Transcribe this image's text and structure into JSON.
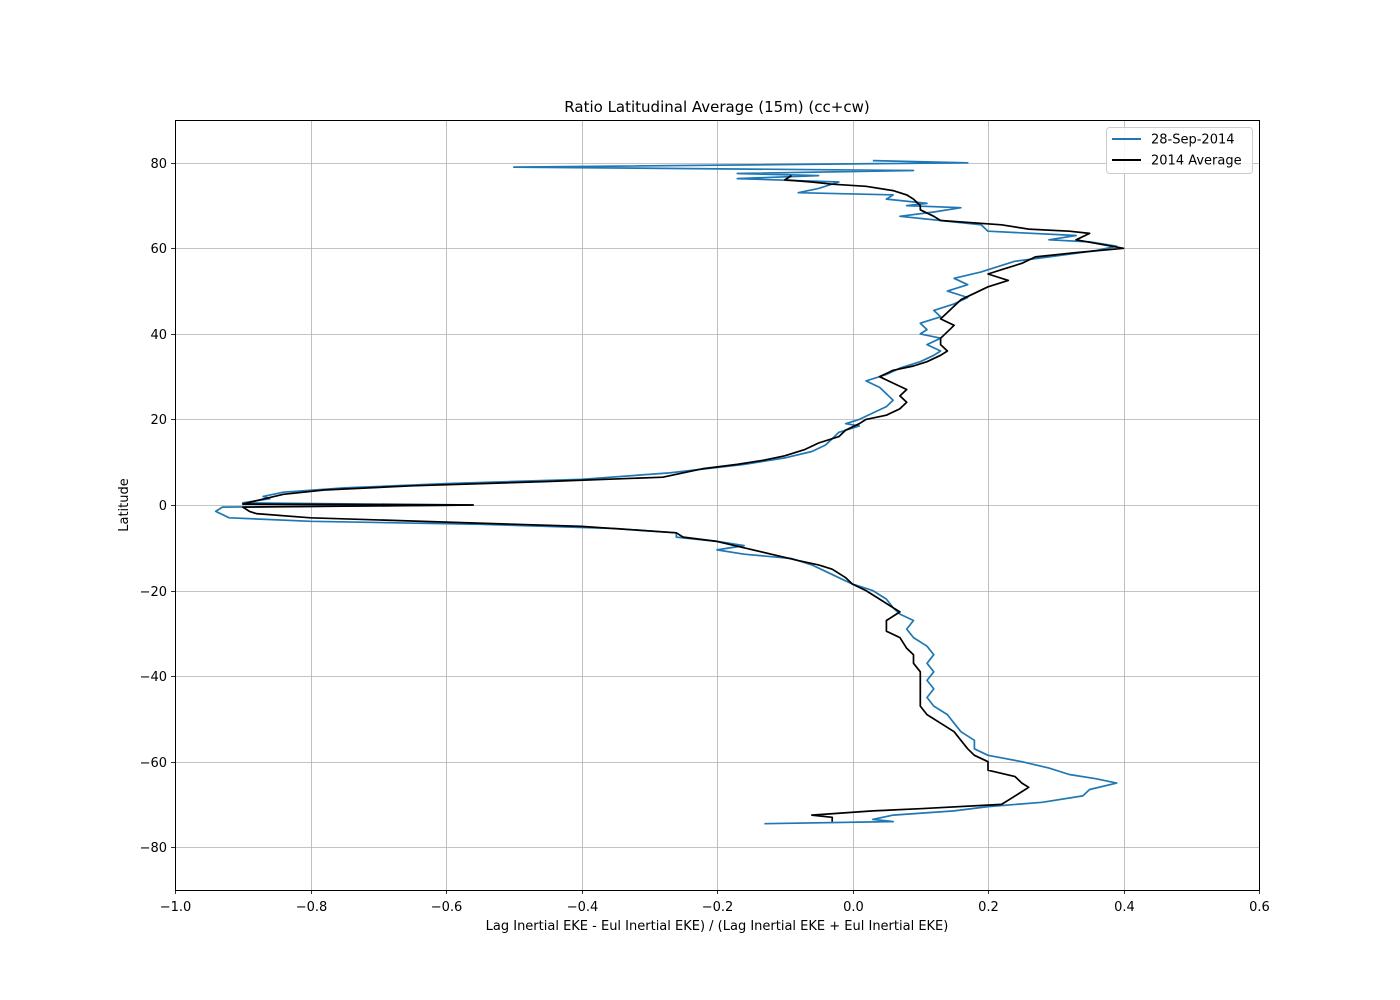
{
  "chart_data": {
    "type": "line",
    "title": "Ratio Latitudinal Average (15m) (cc+cw)",
    "xlabel": "Lag Inertial EKE - Eul Inertial EKE) / (Lag Inertial EKE + Eul Inertial EKE)",
    "ylabel": "Latitude",
    "xlim": [
      -1.0,
      0.6
    ],
    "ylim": [
      -90,
      90
    ],
    "x_ticks": [
      -1.0,
      -0.8,
      -0.6,
      -0.4,
      -0.2,
      0.0,
      0.2,
      0.4,
      0.6
    ],
    "x_tick_labels": [
      "−1.0",
      "−0.8",
      "−0.6",
      "−0.4",
      "−0.2",
      "0.0",
      "0.2",
      "0.4",
      "0.6"
    ],
    "y_ticks": [
      -80,
      -60,
      -40,
      -20,
      0,
      20,
      40,
      60,
      80
    ],
    "y_tick_labels": [
      "−80",
      "−60",
      "−40",
      "−20",
      "0",
      "20",
      "40",
      "60",
      "80"
    ],
    "grid": true,
    "legend_position": "top-right",
    "series": [
      {
        "name": "28-Sep-2014",
        "color": "#1f77b4",
        "points": [
          [
            0.03,
            80.5
          ],
          [
            0.17,
            80.0
          ],
          [
            -0.5,
            79.0
          ],
          [
            0.09,
            78.2
          ],
          [
            -0.17,
            77.5
          ],
          [
            -0.05,
            77.0
          ],
          [
            -0.17,
            76.3
          ],
          [
            -0.02,
            75.5
          ],
          [
            -0.05,
            74.0
          ],
          [
            -0.08,
            73.0
          ],
          [
            0.06,
            72.5
          ],
          [
            0.05,
            71.5
          ],
          [
            0.11,
            70.5
          ],
          [
            0.08,
            70.0
          ],
          [
            0.16,
            69.5
          ],
          [
            0.12,
            68.5
          ],
          [
            0.07,
            67.5
          ],
          [
            0.13,
            66.5
          ],
          [
            0.19,
            65.5
          ],
          [
            0.2,
            64.0
          ],
          [
            0.33,
            63.0
          ],
          [
            0.29,
            62.0
          ],
          [
            0.35,
            61.5
          ],
          [
            0.39,
            60.5
          ],
          [
            0.36,
            59.5
          ],
          [
            0.29,
            58.0
          ],
          [
            0.24,
            57.0
          ],
          [
            0.21,
            55.5
          ],
          [
            0.19,
            54.5
          ],
          [
            0.15,
            53.0
          ],
          [
            0.17,
            51.5
          ],
          [
            0.14,
            50.0
          ],
          [
            0.17,
            48.5
          ],
          [
            0.15,
            47.0
          ],
          [
            0.12,
            45.5
          ],
          [
            0.13,
            44.0
          ],
          [
            0.1,
            42.5
          ],
          [
            0.11,
            41.0
          ],
          [
            0.1,
            40.0
          ],
          [
            0.13,
            39.0
          ],
          [
            0.11,
            37.5
          ],
          [
            0.13,
            36.0
          ],
          [
            0.12,
            35.0
          ],
          [
            0.1,
            33.5
          ],
          [
            0.07,
            32.0
          ],
          [
            0.05,
            30.5
          ],
          [
            0.02,
            29.0
          ],
          [
            0.04,
            27.5
          ],
          [
            0.05,
            26.0
          ],
          [
            0.06,
            24.5
          ],
          [
            0.05,
            23.0
          ],
          [
            0.03,
            21.5
          ],
          [
            0.01,
            20.0
          ],
          [
            -0.01,
            19.0
          ],
          [
            0.01,
            18.5
          ],
          [
            -0.02,
            17.0
          ],
          [
            -0.03,
            15.5
          ],
          [
            -0.04,
            14.0
          ],
          [
            -0.06,
            12.5
          ],
          [
            -0.1,
            11.0
          ],
          [
            -0.16,
            9.5
          ],
          [
            -0.27,
            7.5
          ],
          [
            -0.4,
            6.0
          ],
          [
            -0.6,
            5.0
          ],
          [
            -0.75,
            4.0
          ],
          [
            -0.84,
            3.0
          ],
          [
            -0.87,
            2.0
          ],
          [
            -0.86,
            1.5
          ],
          [
            -0.9,
            0.5
          ],
          [
            -0.56,
            0.0
          ],
          [
            -0.93,
            -0.5
          ],
          [
            -0.94,
            -1.5
          ],
          [
            -0.92,
            -3.0
          ],
          [
            -0.8,
            -3.8
          ],
          [
            -0.55,
            -4.5
          ],
          [
            -0.35,
            -5.5
          ],
          [
            -0.26,
            -6.5
          ],
          [
            -0.26,
            -7.5
          ],
          [
            -0.2,
            -8.5
          ],
          [
            -0.16,
            -9.5
          ],
          [
            -0.2,
            -10.5
          ],
          [
            -0.16,
            -11.5
          ],
          [
            -0.09,
            -12.5
          ],
          [
            -0.06,
            -14.0
          ],
          [
            -0.04,
            -15.5
          ],
          [
            -0.02,
            -17.0
          ],
          [
            0.0,
            -18.5
          ],
          [
            0.03,
            -20.0
          ],
          [
            0.05,
            -22.0
          ],
          [
            0.06,
            -24.0
          ],
          [
            0.07,
            -25.5
          ],
          [
            0.09,
            -27.0
          ],
          [
            0.08,
            -29.0
          ],
          [
            0.09,
            -31.0
          ],
          [
            0.11,
            -33.0
          ],
          [
            0.12,
            -35.0
          ],
          [
            0.11,
            -37.0
          ],
          [
            0.12,
            -39.0
          ],
          [
            0.11,
            -41.0
          ],
          [
            0.12,
            -43.0
          ],
          [
            0.11,
            -45.0
          ],
          [
            0.12,
            -47.0
          ],
          [
            0.14,
            -49.0
          ],
          [
            0.15,
            -51.0
          ],
          [
            0.16,
            -53.0
          ],
          [
            0.18,
            -55.0
          ],
          [
            0.18,
            -57.0
          ],
          [
            0.2,
            -58.5
          ],
          [
            0.25,
            -60.0
          ],
          [
            0.29,
            -61.5
          ],
          [
            0.32,
            -63.0
          ],
          [
            0.36,
            -64.0
          ],
          [
            0.39,
            -65.0
          ],
          [
            0.35,
            -66.5
          ],
          [
            0.34,
            -68.0
          ],
          [
            0.28,
            -69.5
          ],
          [
            0.2,
            -70.5
          ],
          [
            0.15,
            -71.5
          ],
          [
            0.06,
            -72.5
          ],
          [
            0.03,
            -73.5
          ],
          [
            0.06,
            -74.0
          ],
          [
            -0.13,
            -74.5
          ]
        ]
      },
      {
        "name": "2014 Average",
        "color": "#000000",
        "points": [
          [
            -0.09,
            77.0
          ],
          [
            -0.1,
            76.0
          ],
          [
            -0.06,
            75.5
          ],
          [
            -0.03,
            75.0
          ],
          [
            0.02,
            74.5
          ],
          [
            0.06,
            73.5
          ],
          [
            0.08,
            72.5
          ],
          [
            0.09,
            71.5
          ],
          [
            0.1,
            70.0
          ],
          [
            0.1,
            69.0
          ],
          [
            0.12,
            67.5
          ],
          [
            0.13,
            66.5
          ],
          [
            0.22,
            65.5
          ],
          [
            0.26,
            64.5
          ],
          [
            0.32,
            64.0
          ],
          [
            0.35,
            63.5
          ],
          [
            0.33,
            62.0
          ],
          [
            0.4,
            60.0
          ],
          [
            0.33,
            59.0
          ],
          [
            0.27,
            58.0
          ],
          [
            0.25,
            56.5
          ],
          [
            0.22,
            55.0
          ],
          [
            0.2,
            54.0
          ],
          [
            0.23,
            52.5
          ],
          [
            0.2,
            51.0
          ],
          [
            0.18,
            49.5
          ],
          [
            0.16,
            48.0
          ],
          [
            0.15,
            46.5
          ],
          [
            0.14,
            45.0
          ],
          [
            0.13,
            43.5
          ],
          [
            0.15,
            42.0
          ],
          [
            0.14,
            40.5
          ],
          [
            0.13,
            39.0
          ],
          [
            0.13,
            37.5
          ],
          [
            0.14,
            36.0
          ],
          [
            0.13,
            35.0
          ],
          [
            0.11,
            33.5
          ],
          [
            0.09,
            32.5
          ],
          [
            0.06,
            31.5
          ],
          [
            0.04,
            30.0
          ],
          [
            0.06,
            28.5
          ],
          [
            0.08,
            27.0
          ],
          [
            0.07,
            25.5
          ],
          [
            0.08,
            24.0
          ],
          [
            0.07,
            22.5
          ],
          [
            0.05,
            21.0
          ],
          [
            0.02,
            20.0
          ],
          [
            0.01,
            19.0
          ],
          [
            -0.01,
            17.5
          ],
          [
            -0.02,
            16.0
          ],
          [
            -0.05,
            14.5
          ],
          [
            -0.07,
            13.0
          ],
          [
            -0.1,
            11.5
          ],
          [
            -0.13,
            10.5
          ],
          [
            -0.17,
            9.5
          ],
          [
            -0.22,
            8.5
          ],
          [
            -0.28,
            6.5
          ],
          [
            -0.45,
            5.5
          ],
          [
            -0.65,
            4.5
          ],
          [
            -0.78,
            3.5
          ],
          [
            -0.84,
            2.5
          ],
          [
            -0.88,
            1.0
          ],
          [
            -0.9,
            0.2
          ],
          [
            -0.56,
            0.0
          ],
          [
            -0.9,
            -0.5
          ],
          [
            -0.89,
            -1.5
          ],
          [
            -0.88,
            -2.0
          ],
          [
            -0.8,
            -3.0
          ],
          [
            -0.6,
            -4.0
          ],
          [
            -0.4,
            -5.0
          ],
          [
            -0.26,
            -6.5
          ],
          [
            -0.25,
            -7.5
          ],
          [
            -0.2,
            -8.5
          ],
          [
            -0.16,
            -10.0
          ],
          [
            -0.12,
            -11.5
          ],
          [
            -0.08,
            -13.0
          ],
          [
            -0.05,
            -14.0
          ],
          [
            -0.03,
            -15.0
          ],
          [
            -0.01,
            -17.0
          ],
          [
            0.0,
            -18.5
          ],
          [
            0.02,
            -20.0
          ],
          [
            0.04,
            -22.0
          ],
          [
            0.06,
            -24.0
          ],
          [
            0.07,
            -25.0
          ],
          [
            0.05,
            -27.0
          ],
          [
            0.05,
            -29.5
          ],
          [
            0.07,
            -31.0
          ],
          [
            0.08,
            -33.5
          ],
          [
            0.09,
            -35.0
          ],
          [
            0.09,
            -37.0
          ],
          [
            0.1,
            -39.0
          ],
          [
            0.1,
            -41.0
          ],
          [
            0.1,
            -43.0
          ],
          [
            0.1,
            -45.0
          ],
          [
            0.1,
            -47.0
          ],
          [
            0.11,
            -49.0
          ],
          [
            0.13,
            -51.0
          ],
          [
            0.15,
            -53.0
          ],
          [
            0.16,
            -55.0
          ],
          [
            0.17,
            -57.0
          ],
          [
            0.18,
            -58.5
          ],
          [
            0.2,
            -60.0
          ],
          [
            0.2,
            -62.0
          ],
          [
            0.24,
            -63.5
          ],
          [
            0.25,
            -65.0
          ],
          [
            0.26,
            -66.0
          ],
          [
            0.25,
            -67.0
          ],
          [
            0.23,
            -69.0
          ],
          [
            0.22,
            -70.0
          ],
          [
            0.1,
            -71.0
          ],
          [
            0.03,
            -71.5
          ],
          [
            -0.06,
            -72.5
          ],
          [
            -0.03,
            -73.0
          ],
          [
            -0.03,
            -74.0
          ]
        ]
      }
    ]
  }
}
